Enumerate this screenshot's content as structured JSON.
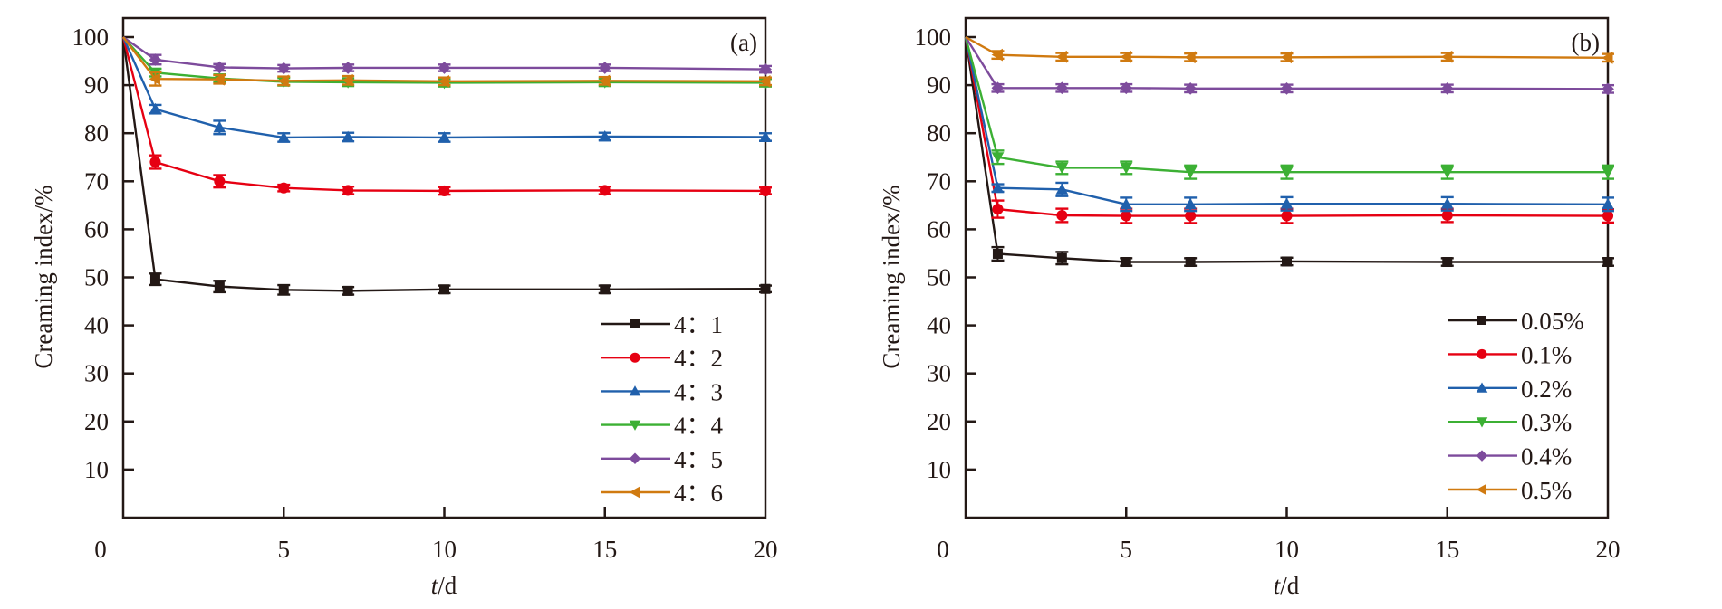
{
  "chart_data": [
    {
      "type": "line",
      "panel_label": "(a)",
      "xlabel_italic": "t",
      "xlabel_rest": "/d",
      "ylabel": "Creaming index/%",
      "xlim": [
        0,
        20
      ],
      "ylim": [
        0,
        100
      ],
      "xticks": [
        0,
        5,
        10,
        15,
        20
      ],
      "yticks": [
        10,
        20,
        30,
        40,
        50,
        60,
        70,
        80,
        90,
        100
      ],
      "x_zero_label": "0",
      "grid": false,
      "legend_position": "bottom-right",
      "x": [
        0,
        1,
        3,
        5,
        7,
        10,
        15,
        20
      ],
      "series": [
        {
          "name": "4：1",
          "color": "#231815",
          "marker": "square",
          "values": [
            100,
            49.6,
            48.1,
            47.4,
            47.2,
            47.5,
            47.5,
            47.6
          ],
          "errors": [
            0,
            1.0,
            1.0,
            0.8,
            0.6,
            0.6,
            0.6,
            0.5
          ]
        },
        {
          "name": "4：2",
          "color": "#e60012",
          "marker": "circle",
          "values": [
            100,
            74.0,
            70.0,
            68.6,
            68.1,
            68.0,
            68.1,
            68.0
          ],
          "errors": [
            0,
            1.2,
            1.1,
            0.5,
            0.6,
            0.6,
            0.6,
            0.5
          ]
        },
        {
          "name": "4：3",
          "color": "#2060ac",
          "marker": "triangle-up",
          "values": [
            100,
            85.0,
            81.2,
            79.1,
            79.2,
            79.1,
            79.3,
            79.2
          ],
          "errors": [
            0,
            0.7,
            1.2,
            0.7,
            0.7,
            0.7,
            0.6,
            0.6
          ]
        },
        {
          "name": "4：4",
          "color": "#3cb034",
          "marker": "triangle-down",
          "values": [
            100,
            92.6,
            91.4,
            90.7,
            90.6,
            90.5,
            90.6,
            90.5
          ],
          "errors": [
            0,
            0.6,
            0.6,
            0.6,
            0.6,
            0.6,
            0.6,
            0.6
          ]
        },
        {
          "name": "4：5",
          "color": "#7d4b9c",
          "marker": "diamond",
          "values": [
            100,
            95.3,
            93.7,
            93.5,
            93.6,
            93.6,
            93.6,
            93.3
          ],
          "errors": [
            0,
            0.8,
            0.5,
            0.5,
            0.5,
            0.5,
            0.5,
            0.5
          ]
        },
        {
          "name": "4：6",
          "color": "#d07a10",
          "marker": "triangle-left",
          "values": [
            100,
            91.3,
            91.2,
            90.9,
            91.0,
            90.8,
            90.9,
            90.8
          ],
          "errors": [
            0,
            1.2,
            0.7,
            0.7,
            0.7,
            0.6,
            0.6,
            0.6
          ]
        }
      ]
    },
    {
      "type": "line",
      "panel_label": "(b)",
      "xlabel_italic": "t",
      "xlabel_rest": "/d",
      "ylabel": "Creaming index/%",
      "xlim": [
        0,
        20
      ],
      "ylim": [
        0,
        100
      ],
      "xticks": [
        0,
        5,
        10,
        15,
        20
      ],
      "yticks": [
        10,
        20,
        30,
        40,
        50,
        60,
        70,
        80,
        90,
        100
      ],
      "x_zero_label": "0",
      "grid": false,
      "legend_position": "bottom-right",
      "x": [
        0,
        1,
        3,
        5,
        7,
        10,
        15,
        20
      ],
      "series": [
        {
          "name": "0.05%",
          "color": "#231815",
          "marker": "square",
          "values": [
            100,
            54.9,
            54.0,
            53.2,
            53.2,
            53.3,
            53.2,
            53.2
          ],
          "errors": [
            0,
            1.2,
            1.1,
            0.6,
            0.6,
            0.6,
            0.6,
            0.6
          ]
        },
        {
          "name": "0.1%",
          "color": "#e60012",
          "marker": "circle",
          "values": [
            100,
            64.2,
            62.9,
            62.8,
            62.8,
            62.8,
            62.9,
            62.8
          ],
          "errors": [
            0,
            1.6,
            1.2,
            1.3,
            1.3,
            1.3,
            1.2,
            1.2
          ]
        },
        {
          "name": "0.2%",
          "color": "#2060ac",
          "marker": "triangle-up",
          "values": [
            100,
            68.6,
            68.3,
            65.2,
            65.2,
            65.3,
            65.3,
            65.2
          ],
          "errors": [
            0,
            0.6,
            1.2,
            1.2,
            1.2,
            1.2,
            1.2,
            1.2
          ]
        },
        {
          "name": "0.3%",
          "color": "#3cb034",
          "marker": "triangle-down",
          "values": [
            100,
            75.0,
            72.8,
            72.8,
            71.9,
            71.9,
            71.9,
            71.9
          ],
          "errors": [
            0,
            1.2,
            1.1,
            1.1,
            1.2,
            1.2,
            1.2,
            1.2
          ]
        },
        {
          "name": "0.4%",
          "color": "#7d4b9c",
          "marker": "diamond",
          "values": [
            100,
            89.4,
            89.4,
            89.4,
            89.3,
            89.3,
            89.3,
            89.2
          ],
          "errors": [
            0,
            0.6,
            0.6,
            0.6,
            0.6,
            0.6,
            0.6,
            0.6
          ]
        },
        {
          "name": "0.5%",
          "color": "#d07a10",
          "marker": "triangle-left",
          "values": [
            100,
            96.3,
            95.9,
            95.9,
            95.8,
            95.8,
            95.9,
            95.7
          ],
          "errors": [
            0,
            0.6,
            0.6,
            0.6,
            0.6,
            0.6,
            0.6,
            0.6
          ]
        }
      ]
    }
  ]
}
